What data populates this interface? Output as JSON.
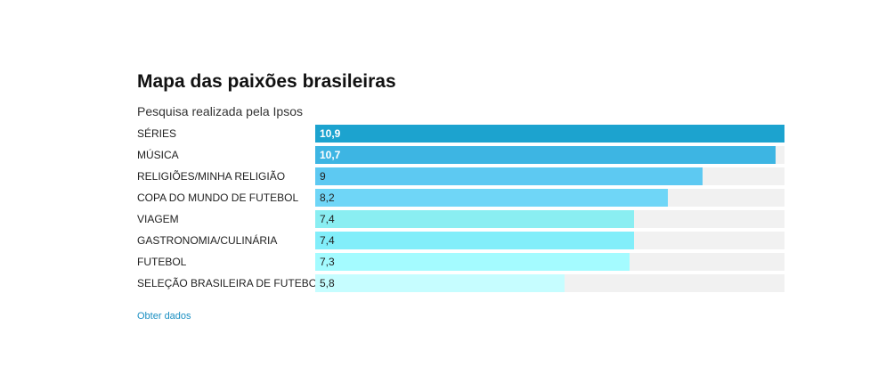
{
  "chart_data": {
    "type": "bar",
    "orientation": "horizontal",
    "title": "Mapa das paixões brasileiras",
    "subtitle": "Pesquisa realizada pela Ipsos",
    "categories": [
      "SÉRIES",
      "MÚSICA",
      "RELIGIÕES/MINHA RELIGIÃO",
      "COPA DO MUNDO DE FUTEBOL",
      "VIAGEM",
      "GASTRONOMIA/CULINÁRIA",
      "FUTEBOL",
      "SELEÇÃO BRASILEIRA DE FUTEBOL"
    ],
    "values": [
      10.9,
      10.7,
      9,
      8.2,
      7.4,
      7.4,
      7.3,
      5.8
    ],
    "value_labels": [
      "10,9",
      "10,7",
      "9",
      "8,2",
      "7,4",
      "7,4",
      "7,3",
      "5,8"
    ],
    "xlim": [
      0,
      10.9
    ],
    "bar_colors": [
      "#1ca3cf",
      "#3db5e3",
      "#5dc9f2",
      "#6fd6f7",
      "#8aeef2",
      "#82eefa",
      "#a4fbff",
      "#c6fdff"
    ],
    "track_color": "#f1f1f1",
    "light_label_indices": [
      0,
      1
    ]
  },
  "footer": {
    "link_label": "Obter dados"
  }
}
